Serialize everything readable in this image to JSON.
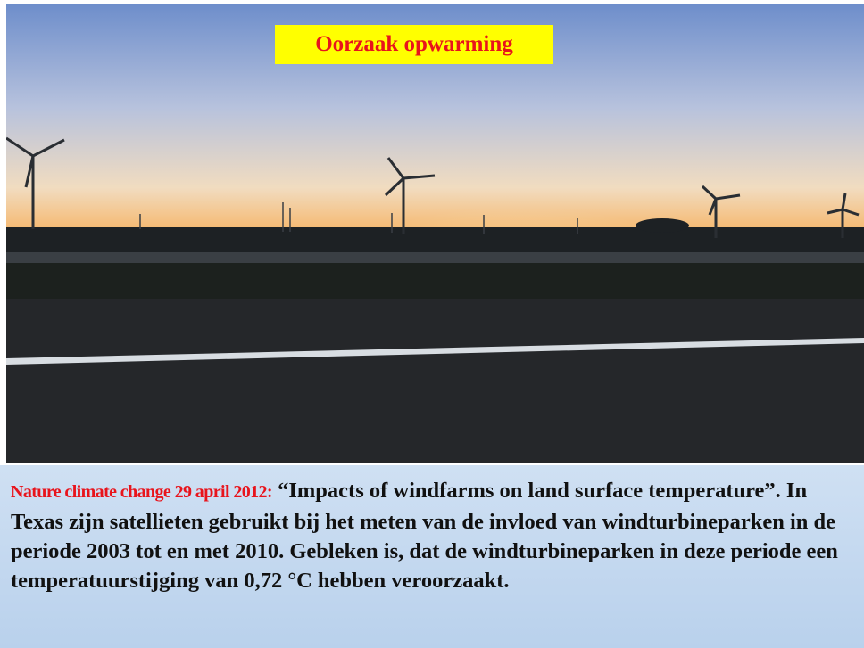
{
  "slide": {
    "title": "Oorzaak opwarming",
    "source": "Nature climate change 29 april 2012:",
    "body": "“Impacts of windfarms on land surface temperature”. In Texas zijn satellieten gebruikt bij het meten van de invloed van windturbineparken in de periode 2003 tot en met 2010. Gebleken is, dat de windturbineparken in deze periode een temperatuurstijging van 0,72 °C hebben veroorzaakt."
  }
}
